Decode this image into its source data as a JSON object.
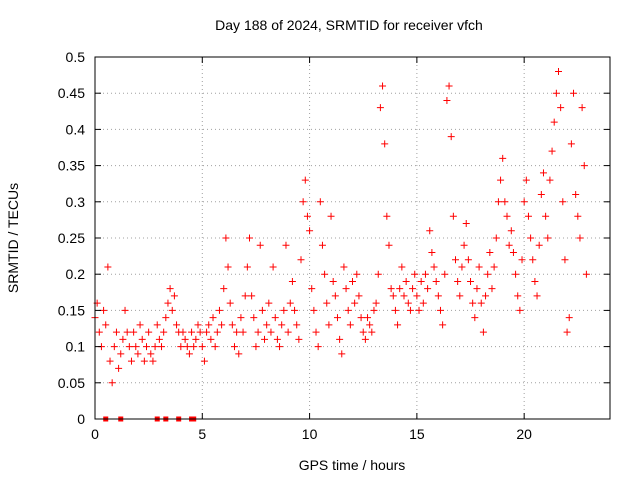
{
  "chart_data": {
    "type": "scatter",
    "title": "Day 188 of 2024, SRMTID for receiver vfch",
    "xlabel": "GPS time / hours",
    "ylabel": "SRMTID / TECUs",
    "xlim": [
      0,
      24
    ],
    "ylim": [
      0,
      0.5
    ],
    "x_ticks": [
      "0",
      "5",
      "10",
      "15",
      "20"
    ],
    "x_tick_values": [
      0,
      5,
      10,
      15,
      20
    ],
    "y_ticks": [
      "0",
      "0.05",
      "0.1",
      "0.15",
      "0.2",
      "0.25",
      "0.3",
      "0.35",
      "0.4",
      "0.45",
      "0.5"
    ],
    "y_tick_values": [
      0,
      0.05,
      0.1,
      0.15,
      0.2,
      0.25,
      0.3,
      0.35,
      0.4,
      0.45,
      0.5
    ],
    "grid": true,
    "marker": "plus",
    "color": "#ff0000",
    "zero_markers": {
      "marker": "square",
      "x": [
        0.5,
        1.2,
        2.9,
        3.3,
        3.9,
        4.5,
        4.6
      ]
    },
    "series": [
      {
        "name": "SRMTID",
        "points": [
          [
            0.0,
            0.14
          ],
          [
            0.1,
            0.16
          ],
          [
            0.2,
            0.12
          ],
          [
            0.3,
            0.1
          ],
          [
            0.4,
            0.15
          ],
          [
            0.5,
            0.13
          ],
          [
            0.6,
            0.21
          ],
          [
            0.7,
            0.08
          ],
          [
            0.8,
            0.05
          ],
          [
            0.9,
            0.1
          ],
          [
            1.0,
            0.12
          ],
          [
            1.1,
            0.07
          ],
          [
            1.2,
            0.09
          ],
          [
            1.3,
            0.11
          ],
          [
            1.4,
            0.15
          ],
          [
            1.5,
            0.12
          ],
          [
            1.6,
            0.1
          ],
          [
            1.7,
            0.08
          ],
          [
            1.8,
            0.12
          ],
          [
            1.9,
            0.1
          ],
          [
            2.0,
            0.09
          ],
          [
            2.1,
            0.13
          ],
          [
            2.2,
            0.11
          ],
          [
            2.3,
            0.08
          ],
          [
            2.4,
            0.1
          ],
          [
            2.5,
            0.12
          ],
          [
            2.6,
            0.09
          ],
          [
            2.7,
            0.08
          ],
          [
            2.8,
            0.1
          ],
          [
            2.9,
            0.13
          ],
          [
            3.0,
            0.11
          ],
          [
            3.1,
            0.1
          ],
          [
            3.2,
            0.12
          ],
          [
            3.3,
            0.14
          ],
          [
            3.4,
            0.16
          ],
          [
            3.5,
            0.18
          ],
          [
            3.6,
            0.15
          ],
          [
            3.7,
            0.17
          ],
          [
            3.8,
            0.13
          ],
          [
            3.9,
            0.12
          ],
          [
            4.0,
            0.1
          ],
          [
            4.1,
            0.12
          ],
          [
            4.2,
            0.11
          ],
          [
            4.3,
            0.1
          ],
          [
            4.4,
            0.09
          ],
          [
            4.5,
            0.12
          ],
          [
            4.6,
            0.1
          ],
          [
            4.7,
            0.11
          ],
          [
            4.8,
            0.13
          ],
          [
            4.9,
            0.12
          ],
          [
            5.0,
            0.1
          ],
          [
            5.1,
            0.08
          ],
          [
            5.2,
            0.12
          ],
          [
            5.3,
            0.13
          ],
          [
            5.4,
            0.11
          ],
          [
            5.5,
            0.14
          ],
          [
            5.6,
            0.1
          ],
          [
            5.7,
            0.12
          ],
          [
            5.8,
            0.15
          ],
          [
            5.9,
            0.13
          ],
          [
            6.0,
            0.18
          ],
          [
            6.1,
            0.25
          ],
          [
            6.2,
            0.21
          ],
          [
            6.3,
            0.16
          ],
          [
            6.4,
            0.13
          ],
          [
            6.5,
            0.1
          ],
          [
            6.6,
            0.12
          ],
          [
            6.7,
            0.09
          ],
          [
            6.8,
            0.14
          ],
          [
            6.9,
            0.12
          ],
          [
            7.0,
            0.17
          ],
          [
            7.1,
            0.21
          ],
          [
            7.2,
            0.25
          ],
          [
            7.3,
            0.17
          ],
          [
            7.4,
            0.14
          ],
          [
            7.5,
            0.1
          ],
          [
            7.6,
            0.12
          ],
          [
            7.7,
            0.24
          ],
          [
            7.8,
            0.15
          ],
          [
            7.9,
            0.11
          ],
          [
            8.0,
            0.13
          ],
          [
            8.1,
            0.16
          ],
          [
            8.2,
            0.12
          ],
          [
            8.3,
            0.21
          ],
          [
            8.4,
            0.14
          ],
          [
            8.5,
            0.11
          ],
          [
            8.6,
            0.1
          ],
          [
            8.7,
            0.13
          ],
          [
            8.8,
            0.15
          ],
          [
            8.9,
            0.24
          ],
          [
            9.0,
            0.12
          ],
          [
            9.1,
            0.16
          ],
          [
            9.2,
            0.19
          ],
          [
            9.3,
            0.15
          ],
          [
            9.4,
            0.13
          ],
          [
            9.5,
            0.11
          ],
          [
            9.6,
            0.22
          ],
          [
            9.7,
            0.3
          ],
          [
            9.8,
            0.33
          ],
          [
            9.9,
            0.28
          ],
          [
            10.0,
            0.26
          ],
          [
            10.1,
            0.18
          ],
          [
            10.2,
            0.15
          ],
          [
            10.3,
            0.12
          ],
          [
            10.4,
            0.1
          ],
          [
            10.5,
            0.3
          ],
          [
            10.6,
            0.24
          ],
          [
            10.7,
            0.2
          ],
          [
            10.8,
            0.16
          ],
          [
            10.9,
            0.13
          ],
          [
            11.0,
            0.28
          ],
          [
            11.1,
            0.19
          ],
          [
            11.2,
            0.17
          ],
          [
            11.3,
            0.14
          ],
          [
            11.4,
            0.11
          ],
          [
            11.5,
            0.09
          ],
          [
            11.6,
            0.21
          ],
          [
            11.7,
            0.18
          ],
          [
            11.8,
            0.15
          ],
          [
            11.9,
            0.13
          ],
          [
            12.0,
            0.19
          ],
          [
            12.1,
            0.16
          ],
          [
            12.2,
            0.2
          ],
          [
            12.3,
            0.17
          ],
          [
            12.4,
            0.14
          ],
          [
            12.5,
            0.12
          ],
          [
            12.6,
            0.11
          ],
          [
            12.7,
            0.14
          ],
          [
            12.8,
            0.13
          ],
          [
            12.9,
            0.12
          ],
          [
            13.0,
            0.15
          ],
          [
            13.1,
            0.16
          ],
          [
            13.2,
            0.2
          ],
          [
            13.3,
            0.43
          ],
          [
            13.4,
            0.46
          ],
          [
            13.5,
            0.38
          ],
          [
            13.6,
            0.28
          ],
          [
            13.7,
            0.24
          ],
          [
            13.8,
            0.18
          ],
          [
            13.9,
            0.17
          ],
          [
            14.0,
            0.15
          ],
          [
            14.1,
            0.13
          ],
          [
            14.2,
            0.18
          ],
          [
            14.3,
            0.21
          ],
          [
            14.4,
            0.17
          ],
          [
            14.5,
            0.19
          ],
          [
            14.6,
            0.16
          ],
          [
            14.7,
            0.15
          ],
          [
            14.8,
            0.18
          ],
          [
            14.9,
            0.2
          ],
          [
            15.0,
            0.17
          ],
          [
            15.1,
            0.15
          ],
          [
            15.2,
            0.19
          ],
          [
            15.3,
            0.16
          ],
          [
            15.4,
            0.2
          ],
          [
            15.5,
            0.18
          ],
          [
            15.6,
            0.26
          ],
          [
            15.7,
            0.23
          ],
          [
            15.8,
            0.21
          ],
          [
            15.9,
            0.19
          ],
          [
            16.0,
            0.17
          ],
          [
            16.1,
            0.15
          ],
          [
            16.2,
            0.13
          ],
          [
            16.3,
            0.2
          ],
          [
            16.4,
            0.44
          ],
          [
            16.5,
            0.46
          ],
          [
            16.6,
            0.39
          ],
          [
            16.7,
            0.28
          ],
          [
            16.8,
            0.22
          ],
          [
            16.9,
            0.19
          ],
          [
            17.0,
            0.17
          ],
          [
            17.1,
            0.21
          ],
          [
            17.2,
            0.24
          ],
          [
            17.3,
            0.27
          ],
          [
            17.4,
            0.22
          ],
          [
            17.5,
            0.19
          ],
          [
            17.6,
            0.16
          ],
          [
            17.7,
            0.14
          ],
          [
            17.8,
            0.18
          ],
          [
            17.9,
            0.21
          ],
          [
            18.0,
            0.16
          ],
          [
            18.1,
            0.12
          ],
          [
            18.2,
            0.17
          ],
          [
            18.3,
            0.2
          ],
          [
            18.4,
            0.23
          ],
          [
            18.5,
            0.18
          ],
          [
            18.6,
            0.21
          ],
          [
            18.7,
            0.25
          ],
          [
            18.8,
            0.3
          ],
          [
            18.9,
            0.33
          ],
          [
            19.0,
            0.36
          ],
          [
            19.1,
            0.3
          ],
          [
            19.2,
            0.28
          ],
          [
            19.3,
            0.24
          ],
          [
            19.4,
            0.26
          ],
          [
            19.5,
            0.23
          ],
          [
            19.6,
            0.2
          ],
          [
            19.7,
            0.17
          ],
          [
            19.8,
            0.15
          ],
          [
            19.9,
            0.22
          ],
          [
            20.0,
            0.3
          ],
          [
            20.1,
            0.33
          ],
          [
            20.2,
            0.28
          ],
          [
            20.3,
            0.25
          ],
          [
            20.4,
            0.22
          ],
          [
            20.5,
            0.19
          ],
          [
            20.6,
            0.17
          ],
          [
            20.7,
            0.24
          ],
          [
            20.8,
            0.31
          ],
          [
            20.9,
            0.34
          ],
          [
            21.0,
            0.28
          ],
          [
            21.1,
            0.25
          ],
          [
            21.2,
            0.33
          ],
          [
            21.3,
            0.37
          ],
          [
            21.4,
            0.41
          ],
          [
            21.5,
            0.45
          ],
          [
            21.6,
            0.48
          ],
          [
            21.7,
            0.43
          ],
          [
            21.8,
            0.3
          ],
          [
            21.9,
            0.22
          ],
          [
            22.0,
            0.12
          ],
          [
            22.1,
            0.14
          ],
          [
            22.2,
            0.38
          ],
          [
            22.3,
            0.45
          ],
          [
            22.4,
            0.31
          ],
          [
            22.5,
            0.28
          ],
          [
            22.6,
            0.25
          ],
          [
            22.7,
            0.43
          ],
          [
            22.8,
            0.35
          ],
          [
            22.9,
            0.2
          ]
        ]
      }
    ]
  }
}
